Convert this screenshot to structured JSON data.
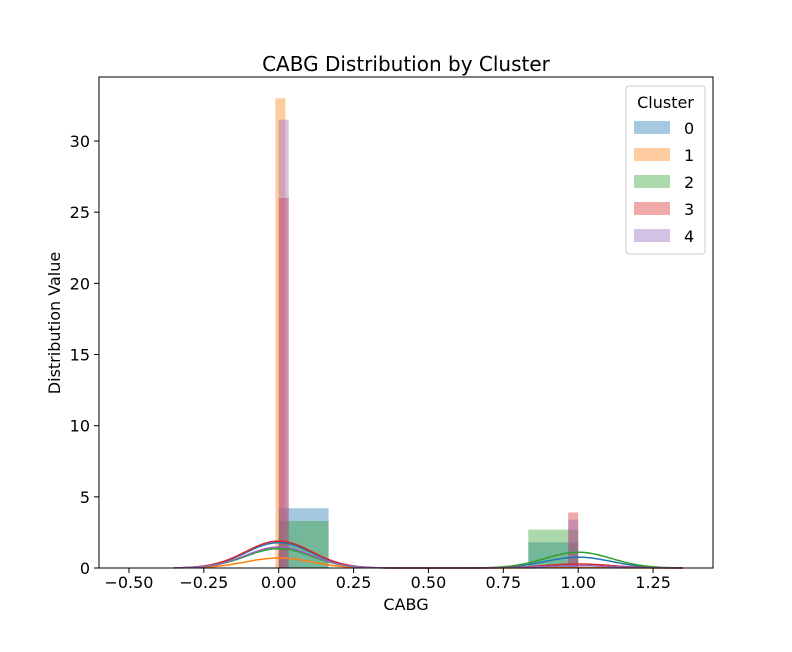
{
  "chart_data": {
    "type": "bar",
    "title": "CABG Distribution by Cluster",
    "xlabel": "CABG",
    "ylabel": "Distribution Value",
    "xlim": [
      -0.6,
      1.45
    ],
    "ylim": [
      0,
      34.5
    ],
    "xticks": [
      -0.5,
      -0.25,
      0.0,
      0.25,
      0.5,
      0.75,
      1.0,
      1.25
    ],
    "xtick_labels": [
      "−0.50",
      "−0.25",
      "0.00",
      "0.25",
      "0.50",
      "0.75",
      "1.00",
      "1.25"
    ],
    "yticks": [
      0,
      5,
      10,
      15,
      20,
      25,
      30
    ],
    "ytick_labels": [
      "0",
      "5",
      "10",
      "15",
      "20",
      "25",
      "30"
    ],
    "grid": false,
    "legend": {
      "title": "Cluster",
      "placement": "top-right"
    },
    "series": [
      {
        "name": "0",
        "color": "#1f77b4",
        "bars": [
          {
            "x0": 0.0,
            "x1": 0.1667,
            "height": 4.2
          },
          {
            "x0": 0.8333,
            "x1": 1.0,
            "height": 1.8
          }
        ],
        "kde": {
          "mean": 0.3,
          "sd": 0.46,
          "scale": 0.7
        }
      },
      {
        "name": "1",
        "color": "#ff7f0e",
        "bars": [
          {
            "x0": -0.0111,
            "x1": 0.0222,
            "height": 33.0
          }
        ],
        "kde": {
          "mean": 0.03,
          "sd": 0.46,
          "scale": 0.2
        }
      },
      {
        "name": "2",
        "color": "#2ca02c",
        "bars": [
          {
            "x0": 0.0,
            "x1": 0.1667,
            "height": 3.3
          },
          {
            "x0": 0.8333,
            "x1": 1.0,
            "height": 2.7
          }
        ],
        "kde": {
          "mean": 0.45,
          "sd": 0.48,
          "scale": 0.68
        }
      },
      {
        "name": "3",
        "color": "#d62728",
        "bars": [
          {
            "x0": 0.0,
            "x1": 0.0333,
            "height": 26.0
          },
          {
            "x0": 0.9667,
            "x1": 1.0,
            "height": 3.9
          }
        ],
        "kde": {
          "mean": 0.13,
          "sd": 0.34,
          "scale": 0.6
        }
      },
      {
        "name": "4",
        "color": "#9467bd",
        "bars": [
          {
            "x0": 0.0,
            "x1": 0.0333,
            "height": 31.5
          },
          {
            "x0": 0.9667,
            "x1": 1.0,
            "height": 3.4
          }
        ],
        "kde": {
          "mean": 0.1,
          "sd": 0.3,
          "scale": 0.45
        }
      }
    ]
  }
}
